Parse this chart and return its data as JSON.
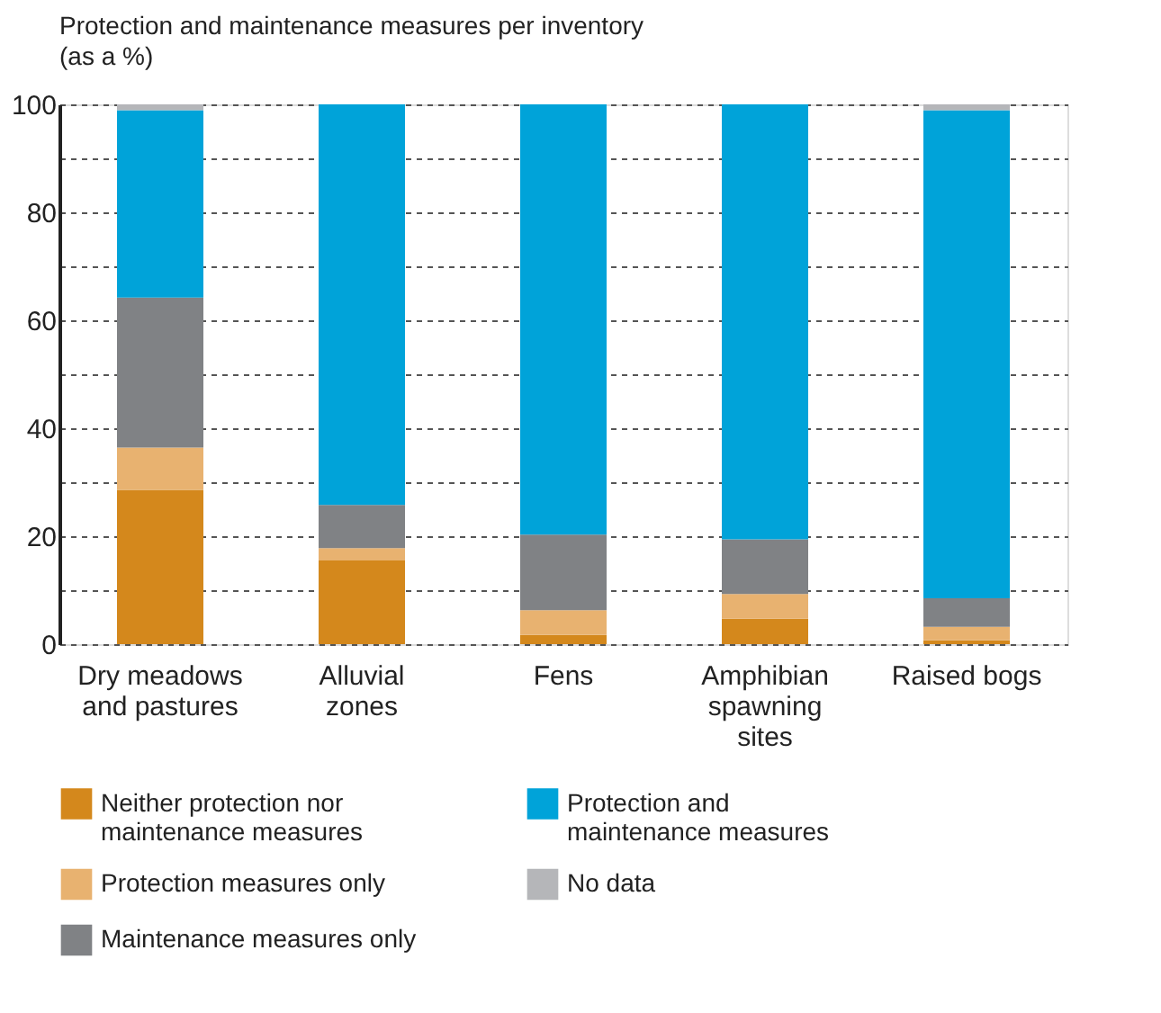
{
  "chart_data": {
    "type": "bar",
    "stacked": true,
    "title": "Protection and maintenance measures per inventory",
    "subtitle": "(as a %)",
    "categories": [
      "Dry meadows and pastures",
      "Alluvial zones",
      "Fens",
      "Amphibian spawning sites",
      "Raised bogs"
    ],
    "series": [
      {
        "name": "Neither protection nor maintenance measures",
        "color": "#d4881c",
        "values": [
          28.6,
          15.5,
          1.7,
          4.7,
          0.7
        ]
      },
      {
        "name": "Protection measures only",
        "color": "#e8b270",
        "values": [
          7.8,
          2.3,
          4.6,
          4.6,
          2.5
        ]
      },
      {
        "name": "Maintenance measures only",
        "color": "#808285",
        "values": [
          27.8,
          8.0,
          14.0,
          10.1,
          5.3
        ]
      },
      {
        "name": "Protection and maintenance measures",
        "color": "#00a3d9",
        "values": [
          34.7,
          74.2,
          79.7,
          80.6,
          90.4
        ]
      },
      {
        "name": "No data",
        "color": "#b5b6b9",
        "values": [
          1.1,
          0,
          0,
          0,
          1.1
        ]
      }
    ],
    "ylim": [
      0,
      100
    ],
    "yticks": [
      0,
      {
        "value": 10,
        "label": null
      },
      20,
      {
        "value": 30,
        "label": null
      },
      40,
      {
        "value": 50,
        "label": null
      },
      60,
      {
        "value": 70,
        "label": null
      },
      80,
      {
        "value": 90,
        "label": null
      },
      100
    ],
    "grid": "y",
    "legend": "bottom"
  }
}
